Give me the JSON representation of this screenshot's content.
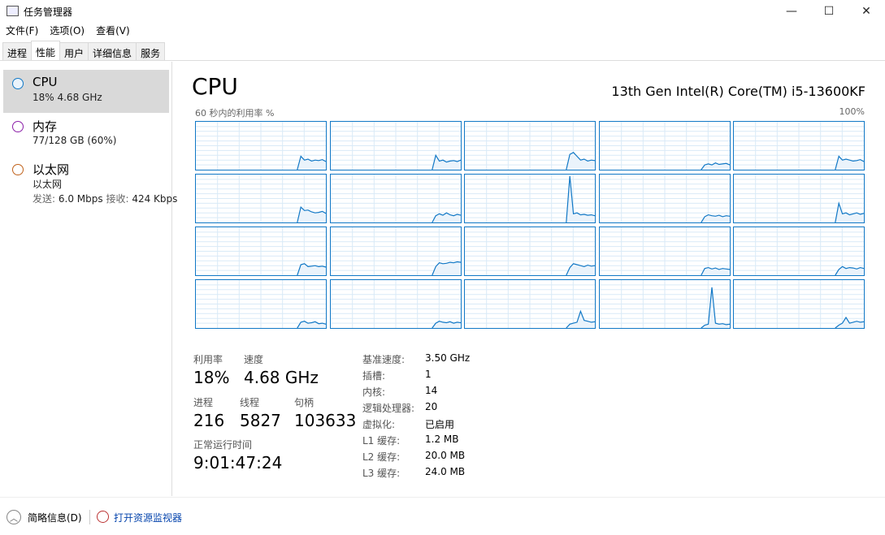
{
  "window": {
    "title": "任务管理器",
    "minimize": "—",
    "maximize": "☐",
    "close": "✕"
  },
  "menu": [
    "文件(F)",
    "选项(O)",
    "查看(V)"
  ],
  "tabs": [
    {
      "label": "进程"
    },
    {
      "label": "性能",
      "active": true
    },
    {
      "label": "用户"
    },
    {
      "label": "详细信息"
    },
    {
      "label": "服务"
    }
  ],
  "sidebar": [
    {
      "name": "CPU",
      "sub": "18% 4.68 GHz",
      "color": "#1178c6",
      "selected": true
    },
    {
      "name": "内存",
      "sub": "77/128 GB (60%)",
      "color": "#8b1fa8"
    },
    {
      "name": "以太网",
      "sub": "以太网",
      "sub2_send_label": "发送:",
      "sub2_send": "6.0 Mbps",
      "sub2_recv_label": "接收:",
      "sub2_recv": "424 Kbps",
      "color": "#c0621b"
    }
  ],
  "main": {
    "title": "CPU",
    "model": "13th Gen Intel(R) Core(TM) i5-13600KF",
    "axis_label": "60 秒内的利用率 %",
    "axis_max": "100%",
    "graph_color": "#1178c6",
    "cores_last_samples_pct": [
      [
        0,
        28,
        20,
        22,
        18,
        20,
        19,
        21,
        17
      ],
      [
        0,
        30,
        18,
        20,
        16,
        18,
        19,
        17,
        20
      ],
      [
        0,
        32,
        36,
        28,
        20,
        22,
        18,
        20,
        19
      ],
      [
        0,
        10,
        12,
        10,
        14,
        11,
        12,
        13,
        10
      ],
      [
        0,
        28,
        20,
        22,
        20,
        18,
        19,
        21,
        17
      ],
      [
        0,
        32,
        25,
        26,
        22,
        20,
        21,
        23,
        19
      ],
      [
        0,
        14,
        18,
        15,
        20,
        16,
        14,
        17,
        15
      ],
      [
        0,
        97,
        18,
        20,
        16,
        17,
        15,
        16,
        14
      ],
      [
        0,
        12,
        16,
        14,
        13,
        15,
        12,
        14,
        13
      ],
      [
        0,
        40,
        18,
        20,
        16,
        18,
        20,
        17,
        19
      ],
      [
        0,
        22,
        24,
        18,
        19,
        20,
        18,
        19,
        17
      ],
      [
        0,
        18,
        26,
        24,
        25,
        27,
        26,
        28,
        27
      ],
      [
        0,
        16,
        24,
        22,
        20,
        18,
        21,
        19,
        20
      ],
      [
        0,
        14,
        16,
        13,
        15,
        12,
        14,
        13,
        12
      ],
      [
        0,
        12,
        18,
        14,
        16,
        15,
        13,
        16,
        14
      ],
      [
        0,
        12,
        14,
        10,
        11,
        13,
        9,
        10,
        8
      ],
      [
        0,
        10,
        14,
        12,
        11,
        13,
        10,
        12,
        11
      ],
      [
        0,
        8,
        10,
        12,
        35,
        16,
        14,
        12,
        13
      ],
      [
        0,
        6,
        8,
        85,
        10,
        8,
        9,
        7,
        8
      ],
      [
        0,
        6,
        10,
        22,
        10,
        12,
        14,
        12,
        13
      ]
    ],
    "stats": {
      "util_label": "利用率",
      "util": "18%",
      "speed_label": "速度",
      "speed": "4.68 GHz",
      "proc_label": "进程",
      "proc": "216",
      "thread_label": "线程",
      "thread": "5827",
      "handle_label": "句柄",
      "handle": "103633",
      "uptime_label": "正常运行时间",
      "uptime": "9:01:47:24"
    },
    "specs": [
      [
        "基准速度:",
        "3.50 GHz"
      ],
      [
        "插槽:",
        "1"
      ],
      [
        "内核:",
        "14"
      ],
      [
        "逻辑处理器:",
        "20"
      ],
      [
        "虚拟化:",
        "已启用"
      ],
      [
        "L1 缓存:",
        "1.2 MB"
      ],
      [
        "L2 缓存:",
        "20.0 MB"
      ],
      [
        "L3 缓存:",
        "24.0 MB"
      ]
    ]
  },
  "footer": {
    "brief": "简略信息(D)",
    "monitor": "打开资源监视器"
  }
}
